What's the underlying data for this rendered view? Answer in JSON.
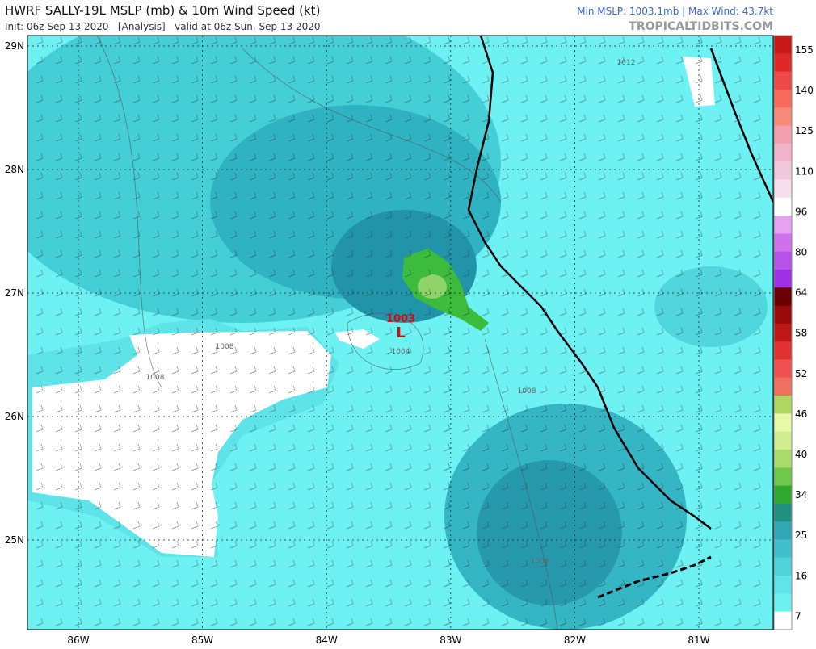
{
  "header": {
    "title": "HWRF SALLY-19L MSLP (mb) & 10m Wind Speed (kt)",
    "init": "Init: 06z Sep 13 2020   [Analysis]   valid at 06z Sun, Sep 13 2020",
    "stats": "Min MSLP: 1003.1mb | Max Wind: 43.7kt",
    "credit": "TROPICALTIDBITS.COM"
  },
  "map": {
    "lat_labels": [
      "29N",
      "28N",
      "27N",
      "26N",
      "25N"
    ],
    "lon_labels": [
      "86W",
      "85W",
      "84W",
      "83W",
      "82W",
      "81W"
    ],
    "low": {
      "pressure": "1003",
      "symbol": "L"
    },
    "isobar_labels": [
      "1012",
      "1008",
      "1008",
      "1004",
      "1008",
      "1008"
    ]
  },
  "colorbar": {
    "labels": [
      155,
      140,
      125,
      110,
      96,
      80,
      64,
      58,
      52,
      46,
      40,
      34,
      25,
      16,
      7
    ]
  }
}
